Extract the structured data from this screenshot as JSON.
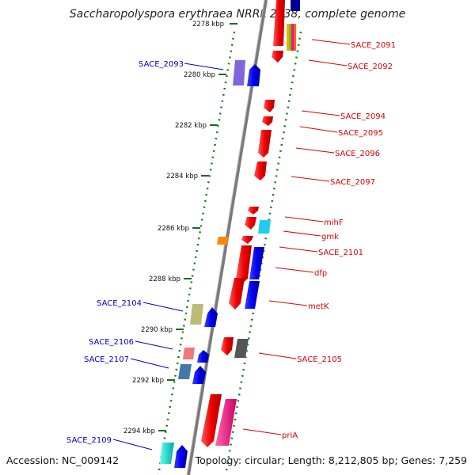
{
  "title": "Saccharopolyspora erythraea NRRL 2338, complete genome",
  "accession_text": "Accession: NC_009142",
  "topology_text": "Topology: circular; Length: 8,212,805 bp; Genes: 7,259",
  "ticks": [
    "2278 kbp",
    "2280 kbp",
    "2282 kbp",
    "2284 kbp",
    "2286 kbp",
    "2288 kbp",
    "2290 kbp",
    "2292 kbp",
    "2294 kbp"
  ],
  "genes_right": [
    "SACE_2091",
    "SACE_2092",
    "SACE_2094",
    "SACE_2095",
    "SACE_2096",
    "SACE_2097",
    "mihF",
    "gmk",
    "SACE_2101",
    "dfp",
    "metK",
    "SACE_2105",
    "priA"
  ],
  "genes_left": [
    "SACE_2093",
    "SACE_2104",
    "SACE_2106",
    "SACE_2107",
    "SACE_2109"
  ],
  "colors": {
    "forward_strand_label": "#e00000",
    "reverse_strand_label": "#0000cc",
    "backbone": "#888888",
    "tick": "#1a6e1a",
    "gene_red": "#e00000",
    "gene_blue": "#0000cc"
  }
}
